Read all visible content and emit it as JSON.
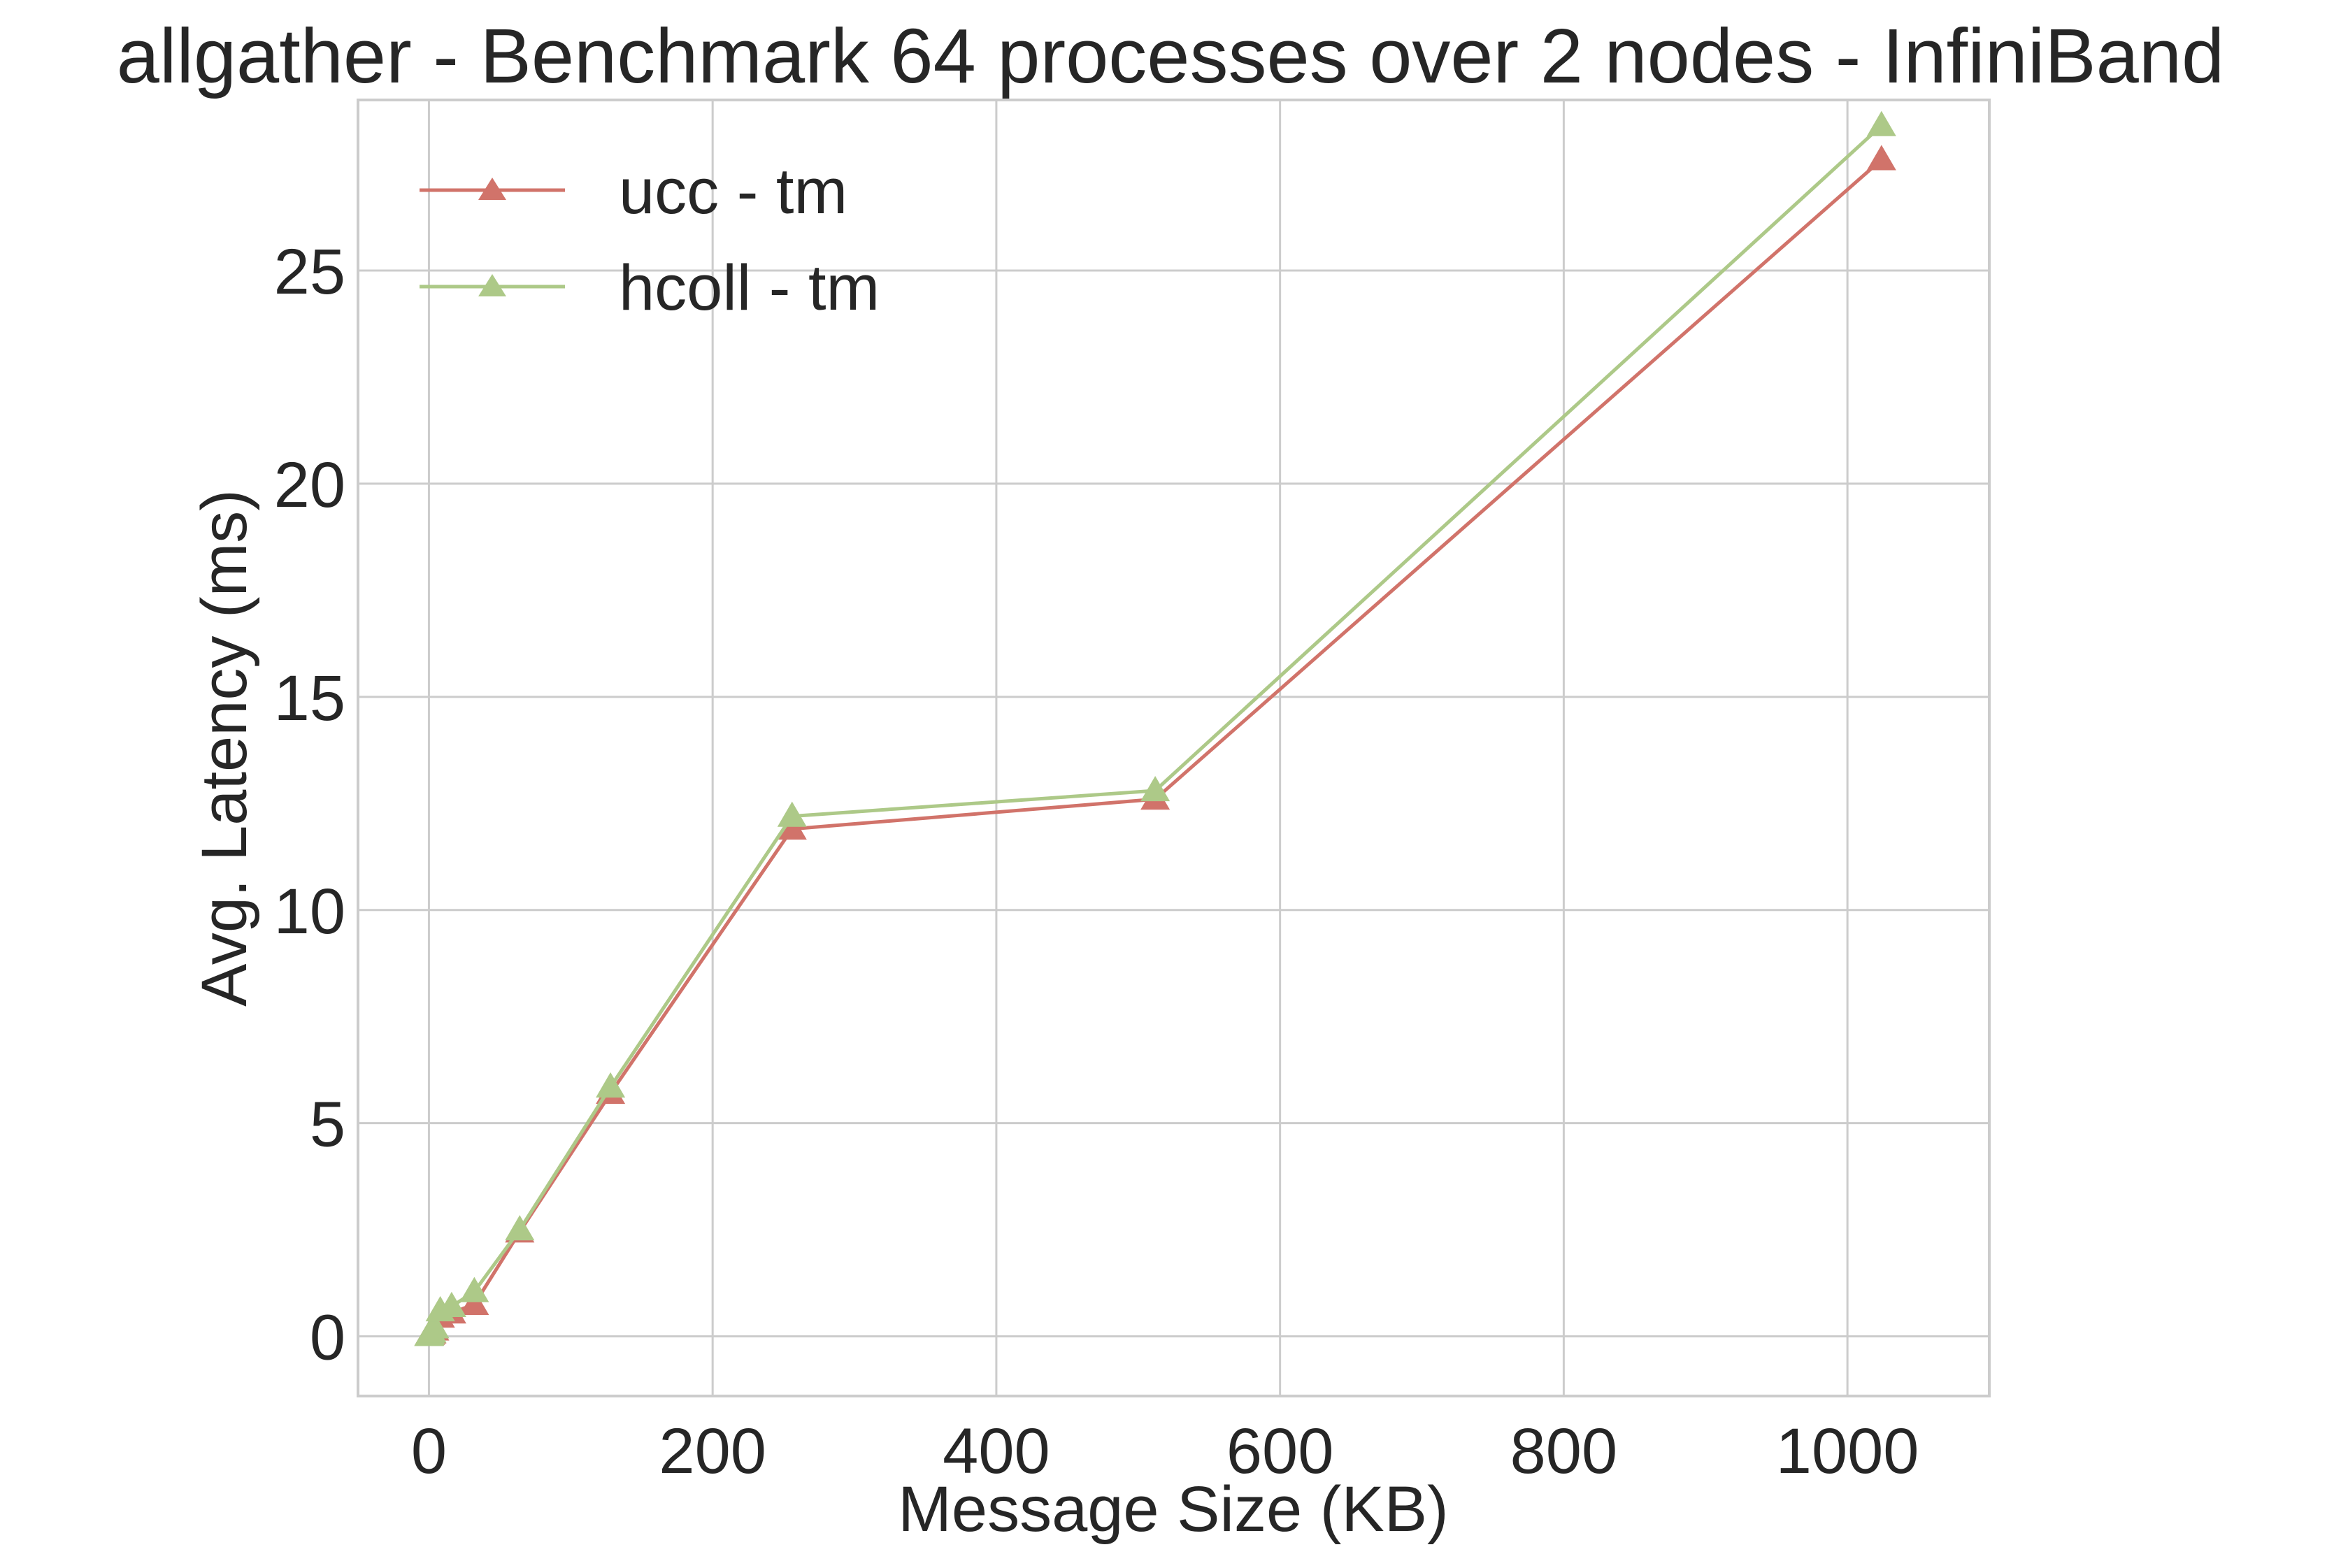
{
  "chart_data": {
    "type": "line",
    "title": "allgather - Benchmark 64 processes over 2 nodes - InfiniBand",
    "xlabel": "Message Size (KB)",
    "ylabel": "Avg. Latency (ms)",
    "xlim": [
      -50,
      1100
    ],
    "ylim": [
      -1.4,
      29.0
    ],
    "xticks": [
      0,
      200,
      400,
      600,
      800,
      1000
    ],
    "yticks": [
      0,
      5,
      10,
      15,
      20,
      25
    ],
    "grid": true,
    "legend_position": "upper-left",
    "x": [
      0.001,
      0.002,
      0.004,
      0.008,
      0.016,
      0.032,
      0.064,
      0.128,
      0.256,
      0.512,
      1,
      2,
      4,
      8,
      16,
      32,
      64,
      128,
      256,
      512,
      1024
    ],
    "series": [
      {
        "name": "ucc - tm",
        "color": "#d1736a",
        "marker": "triangle",
        "values": [
          0.02,
          0.02,
          0.02,
          0.02,
          0.02,
          0.02,
          0.02,
          0.03,
          0.03,
          0.04,
          0.05,
          0.08,
          0.15,
          0.45,
          0.55,
          0.75,
          2.45,
          5.7,
          11.9,
          12.6,
          27.6
        ]
      },
      {
        "name": "hcoll - tm",
        "color": "#adc988",
        "marker": "triangle",
        "values": [
          0.02,
          0.02,
          0.02,
          0.02,
          0.02,
          0.02,
          0.02,
          0.03,
          0.03,
          0.04,
          0.06,
          0.1,
          0.2,
          0.6,
          0.7,
          1.05,
          2.5,
          5.85,
          12.2,
          12.8,
          28.4
        ]
      }
    ]
  }
}
